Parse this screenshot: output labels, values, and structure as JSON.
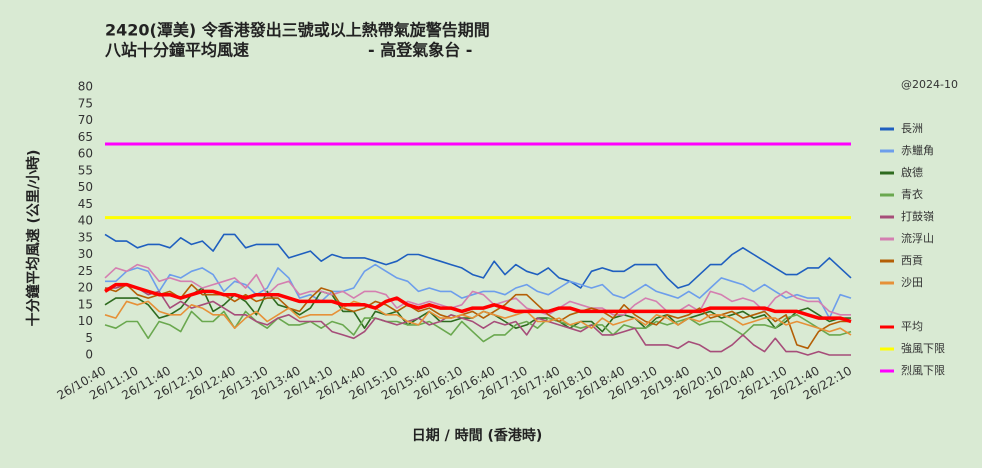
{
  "chart_data": {
    "type": "line",
    "title": "2420(潭美)  令香港發出三號或以上熱帶氣旋警告期間",
    "subtitle": "八站十分鐘平均風速",
    "source": "- 高登氣象台 -",
    "note": "@2024-10",
    "x_label": "日期 / 時間 (香港時)",
    "y_label": "十分鐘平均風速 (公里/小時)",
    "categories": [
      "26/10:40",
      null,
      null,
      "26/11:10",
      null,
      null,
      "26/11:40",
      null,
      null,
      "26/12:10",
      null,
      null,
      "26/12:40",
      null,
      null,
      "26/13:10",
      null,
      null,
      "26/13:40",
      null,
      null,
      "26/14:10",
      null,
      null,
      "26/14:40",
      null,
      null,
      "26/15:10",
      null,
      null,
      "26/15:40",
      null,
      null,
      "26/16:10",
      null,
      null,
      "26/16:40",
      null,
      null,
      "26/17:10",
      null,
      null,
      "26/17:40",
      null,
      null,
      "26/18:10",
      null,
      null,
      "26/18:40",
      null,
      null,
      "26/19:10",
      null,
      null,
      "26/19:40",
      null,
      null,
      "26/20:10",
      null,
      null,
      "26/20:40",
      null,
      null,
      "26/21:10",
      null,
      null,
      "26/21:40",
      null,
      null,
      "26/22:10"
    ],
    "ylim": [
      0,
      80
    ],
    "yticks": [
      0,
      5,
      10,
      15,
      20,
      25,
      30,
      35,
      40,
      45,
      50,
      55,
      60,
      65,
      70,
      75,
      80
    ],
    "grid": false,
    "legend": "right",
    "series": [
      {
        "name": "長洲",
        "color": "#1f5fbf",
        "values": [
          36,
          34,
          34,
          32,
          33,
          33,
          32,
          35,
          33,
          34,
          31,
          36,
          36,
          32,
          33,
          33,
          33,
          29,
          30,
          31,
          28,
          30,
          29,
          29,
          29,
          28,
          27,
          28,
          30,
          30,
          29,
          28,
          27,
          26,
          24,
          23,
          28,
          24,
          27,
          25,
          24,
          26,
          23,
          22,
          20,
          25,
          26,
          25,
          25,
          27,
          27,
          27,
          23,
          20,
          21,
          24,
          27,
          27,
          30,
          32,
          30,
          28,
          26,
          24,
          24,
          26,
          26,
          29,
          26,
          23
        ]
      },
      {
        "name": "赤鱲角",
        "color": "#6d9eeb",
        "values": [
          22,
          22,
          25,
          26,
          25,
          19,
          24,
          23,
          25,
          26,
          24,
          19,
          22,
          21,
          18,
          20,
          26,
          23,
          17,
          18,
          16,
          19,
          19,
          20,
          25,
          27,
          25,
          23,
          22,
          19,
          20,
          19,
          19,
          17,
          18,
          19,
          19,
          18,
          20,
          21,
          19,
          18,
          20,
          22,
          21,
          20,
          21,
          18,
          17,
          19,
          21,
          19,
          18,
          17,
          19,
          17,
          20,
          23,
          22,
          21,
          19,
          21,
          19,
          17,
          18,
          17,
          17,
          11,
          18,
          17
        ]
      },
      {
        "name": "啟德",
        "color": "#2e6b1f",
        "values": [
          15,
          17,
          17,
          17,
          15,
          11,
          12,
          14,
          18,
          20,
          13,
          15,
          18,
          16,
          12,
          19,
          15,
          14,
          12,
          14,
          19,
          18,
          13,
          13,
          8,
          13,
          12,
          13,
          9,
          11,
          13,
          10,
          10,
          11,
          11,
          13,
          12,
          10,
          8,
          9,
          11,
          11,
          10,
          8,
          10,
          10,
          7,
          11,
          12,
          11,
          8,
          11,
          12,
          9,
          11,
          12,
          13,
          11,
          12,
          13,
          11,
          12,
          8,
          10,
          13,
          14,
          12,
          10,
          11,
          11
        ]
      },
      {
        "name": "青衣",
        "color": "#6aa84f",
        "values": [
          9,
          8,
          10,
          10,
          5,
          10,
          9,
          7,
          13,
          10,
          10,
          13,
          8,
          13,
          10,
          8,
          11,
          9,
          9,
          10,
          8,
          10,
          9,
          6,
          11,
          11,
          10,
          10,
          9,
          9,
          10,
          8,
          6,
          10,
          7,
          4,
          6,
          6,
          9,
          10,
          8,
          11,
          10,
          9,
          8,
          9,
          9,
          6,
          9,
          8,
          8,
          10,
          9,
          10,
          11,
          9,
          10,
          10,
          8,
          6,
          9,
          9,
          8,
          11,
          12,
          10,
          8,
          6,
          6,
          7
        ]
      },
      {
        "name": "打鼓嶺",
        "color": "#a64d79",
        "values": [
          20,
          20,
          21,
          20,
          18,
          19,
          14,
          16,
          14,
          15,
          16,
          14,
          12,
          12,
          10,
          9,
          11,
          12,
          10,
          10,
          10,
          7,
          6,
          5,
          7,
          11,
          10,
          9,
          10,
          11,
          9,
          10,
          12,
          11,
          10,
          8,
          10,
          9,
          10,
          6,
          11,
          10,
          9,
          8,
          7,
          9,
          6,
          6,
          7,
          8,
          3,
          3,
          3,
          2,
          4,
          3,
          1,
          1,
          3,
          6,
          3,
          1,
          5,
          1,
          1,
          0,
          1,
          0,
          0,
          0
        ]
      },
      {
        "name": "流浮山",
        "color": "#d47fb0",
        "values": [
          23,
          26,
          25,
          27,
          26,
          22,
          23,
          22,
          22,
          20,
          21,
          22,
          23,
          20,
          24,
          18,
          21,
          22,
          18,
          19,
          19,
          18,
          19,
          17,
          19,
          19,
          18,
          14,
          16,
          15,
          16,
          15,
          14,
          15,
          19,
          18,
          15,
          16,
          17,
          14,
          13,
          12,
          14,
          16,
          15,
          14,
          14,
          12,
          12,
          15,
          17,
          16,
          13,
          13,
          15,
          13,
          19,
          18,
          16,
          17,
          16,
          13,
          17,
          19,
          17,
          16,
          16,
          13,
          12,
          12
        ]
      },
      {
        "name": "西貢",
        "color": "#b45f06",
        "values": [
          20,
          19,
          21,
          18,
          17,
          18,
          19,
          17,
          21,
          18,
          18,
          18,
          16,
          18,
          16,
          17,
          17,
          14,
          13,
          17,
          20,
          19,
          14,
          13,
          14,
          16,
          15,
          13,
          15,
          13,
          14,
          12,
          11,
          12,
          13,
          11,
          13,
          15,
          18,
          18,
          15,
          12,
          10,
          12,
          13,
          14,
          13,
          11,
          15,
          12,
          10,
          9,
          12,
          11,
          12,
          14,
          11,
          12,
          13,
          11,
          12,
          13,
          10,
          12,
          3,
          2,
          7,
          9,
          10,
          10
        ]
      },
      {
        "name": "沙田",
        "color": "#e69138",
        "values": [
          12,
          11,
          16,
          15,
          16,
          13,
          12,
          12,
          15,
          14,
          12,
          12,
          8,
          11,
          13,
          10,
          12,
          14,
          11,
          12,
          12,
          12,
          14,
          16,
          15,
          14,
          12,
          12,
          10,
          9,
          13,
          11,
          11,
          12,
          11,
          13,
          12,
          11,
          12,
          13,
          10,
          10,
          11,
          9,
          10,
          8,
          11,
          9,
          10,
          11,
          9,
          12,
          11,
          9,
          11,
          10,
          12,
          12,
          11,
          9,
          10,
          11,
          11,
          9,
          10,
          9,
          8,
          7,
          8,
          6
        ]
      },
      {
        "name": "平均",
        "color": "#ff0000",
        "values": [
          19,
          21,
          21,
          20,
          19,
          18,
          18,
          17,
          18,
          19,
          19,
          18,
          18,
          17,
          18,
          18,
          18,
          17,
          16,
          16,
          16,
          16,
          15,
          15,
          15,
          14,
          16,
          17,
          15,
          14,
          15,
          14,
          14,
          13,
          14,
          14,
          15,
          14,
          13,
          13,
          13,
          13,
          14,
          14,
          13,
          13,
          13,
          13,
          13,
          13,
          13,
          13,
          13,
          13,
          13,
          13,
          14,
          14,
          14,
          14,
          14,
          14,
          13,
          13,
          13,
          12,
          11,
          11,
          11,
          10
        ]
      }
    ],
    "thresholds": [
      {
        "name": "強風下限",
        "color": "#ffff00",
        "value": 41
      },
      {
        "name": "烈風下限",
        "color": "#ff00ff",
        "value": 63
      }
    ]
  }
}
